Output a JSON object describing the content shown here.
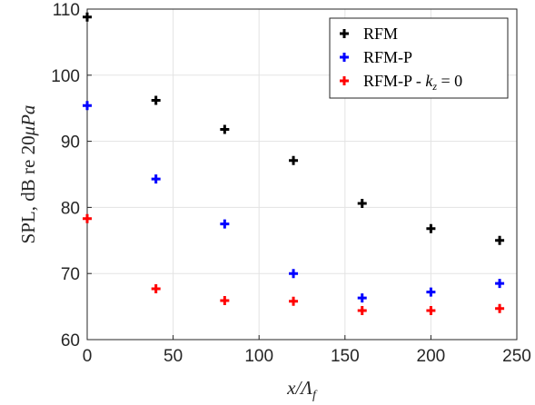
{
  "chart_data": {
    "type": "scatter",
    "title": "",
    "xlabel": "x/Λf",
    "ylabel": "SPL, dB re 20μPa",
    "xlim": [
      0,
      250
    ],
    "ylim": [
      60,
      110
    ],
    "xticks": [
      "0",
      "50",
      "100",
      "150",
      "200",
      "250"
    ],
    "yticks": [
      "60",
      "70",
      "80",
      "90",
      "100",
      "110"
    ],
    "grid": true,
    "legend_position": "top-right",
    "x": [
      0,
      40,
      80,
      120,
      160,
      200,
      240
    ],
    "series": [
      {
        "name": "RFM",
        "color": "#000000",
        "values": [
          108.8,
          96.2,
          91.8,
          87.1,
          80.6,
          76.8,
          75.0
        ]
      },
      {
        "name": "RFM-P",
        "color": "#0000ff",
        "values": [
          95.4,
          84.3,
          77.5,
          70.0,
          66.3,
          67.2,
          68.5
        ]
      },
      {
        "name": "RFM-P - kz = 0",
        "color": "#ff0000",
        "values": [
          78.3,
          67.7,
          65.9,
          65.8,
          64.4,
          64.4,
          64.7
        ]
      }
    ]
  }
}
